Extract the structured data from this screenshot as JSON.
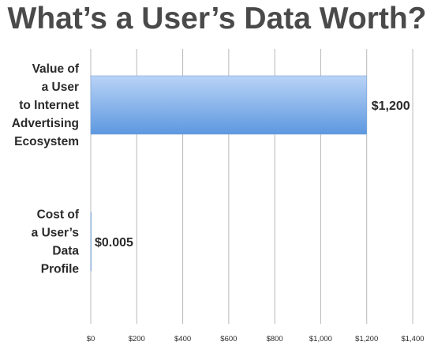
{
  "chart_data": {
    "type": "bar",
    "orientation": "horizontal",
    "title": "What’s a User’s Data Worth?",
    "categories": [
      [
        "Value of",
        "a User",
        "to Internet",
        "Advertising",
        "Ecosystem"
      ],
      [
        "Cost of",
        "a User’s",
        "Data",
        "Profile"
      ]
    ],
    "values": [
      1200,
      0.005
    ],
    "data_labels": [
      "$1,200",
      "$0.005"
    ],
    "xlim": [
      0,
      1400
    ],
    "xticks": [
      0,
      200,
      400,
      600,
      800,
      1000,
      1200,
      1400
    ],
    "xtick_labels": [
      "$0",
      "$200",
      "$400",
      "$600",
      "$800",
      "$1,000",
      "$1,200",
      "$1,400"
    ],
    "grid": true,
    "legend": "none",
    "colors": {
      "bar_top": "#b9d3f6",
      "bar_bottom": "#5d98e0",
      "bar_edge": "#7aa6d8",
      "grid": "#b8b8b8",
      "title": "#4a4a4a",
      "text": "#2a2a2a"
    }
  }
}
